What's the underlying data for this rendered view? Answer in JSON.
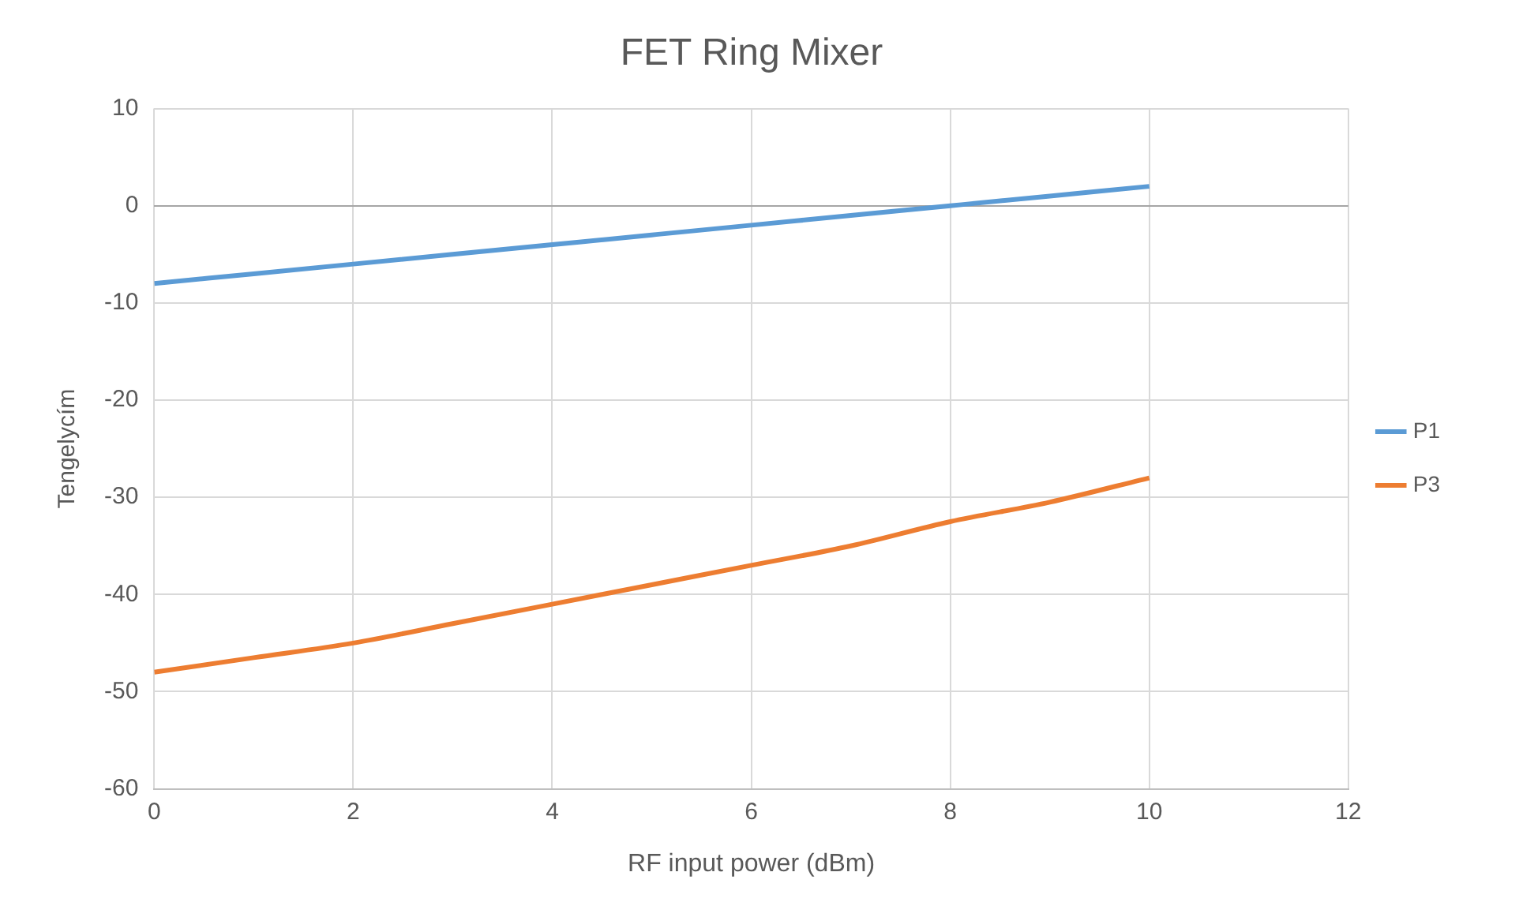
{
  "chart_data": {
    "type": "line",
    "title": "FET Ring Mixer",
    "xlabel": "RF input power (dBm)",
    "ylabel": "Tengelycím",
    "x": [
      0,
      1,
      2,
      3,
      4,
      5,
      6,
      7,
      8,
      9,
      10
    ],
    "series": [
      {
        "name": "P1",
        "color": "#5b9bd5",
        "values": [
          -8,
          -7,
          -6,
          -5,
          -4,
          -3,
          -2,
          -1,
          0,
          1,
          2
        ]
      },
      {
        "name": "P3",
        "color": "#ed7d31",
        "values": [
          -48,
          -46.5,
          -45,
          -43,
          -41,
          -39,
          -37,
          -35,
          -32.5,
          -30.5,
          -28
        ]
      }
    ],
    "xlim": [
      0,
      12
    ],
    "xticks": [
      0,
      2,
      4,
      6,
      8,
      10,
      12
    ],
    "ylim": [
      -60,
      10
    ],
    "yticks": [
      -60,
      -50,
      -40,
      -30,
      -20,
      -10,
      0,
      10
    ],
    "grid": true,
    "legend": "right",
    "marker": "none",
    "line_style": "solid"
  }
}
